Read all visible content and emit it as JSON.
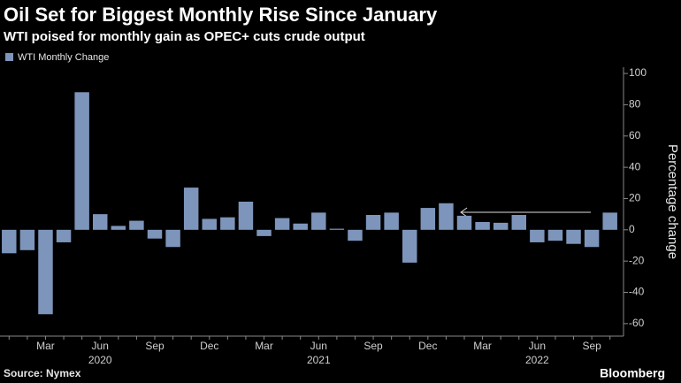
{
  "chart_data": {
    "type": "bar",
    "title": "Oil Set for Biggest Monthly Rise Since January",
    "subtitle": "WTI poised for monthly gain as OPEC+ cuts crude output",
    "y_axis_label": "Percentage change",
    "source": "Source: Nymex",
    "brand": "Bloomberg",
    "categories": [
      null,
      null,
      "Mar",
      null,
      null,
      "Jun",
      null,
      null,
      "Sep",
      null,
      null,
      "Dec",
      null,
      null,
      "Mar",
      null,
      null,
      "Jun",
      null,
      null,
      "Sep",
      null,
      null,
      "Dec",
      null,
      null,
      "Mar",
      null,
      null,
      "Jun",
      null,
      null,
      "Sep",
      null
    ],
    "x_year_labels": [
      null,
      null,
      null,
      null,
      null,
      "2020",
      null,
      null,
      null,
      null,
      null,
      null,
      null,
      null,
      null,
      null,
      null,
      "2021",
      null,
      null,
      null,
      null,
      null,
      null,
      null,
      null,
      null,
      null,
      null,
      "2022",
      null,
      null,
      null,
      null
    ],
    "series": [
      {
        "name": "WTI Monthly Change",
        "color": "#7d95bb",
        "values": [
          -15,
          -13,
          -54,
          -8,
          88,
          10,
          2.5,
          5.8,
          -5.6,
          -11,
          27,
          7,
          8,
          18,
          -4,
          7.5,
          4,
          11,
          0.7,
          -7,
          9.5,
          11,
          -21,
          14,
          17,
          9,
          5,
          4.5,
          9.5,
          -8,
          -7,
          -9,
          -11,
          11
        ]
      }
    ],
    "ylim": [
      -68,
      104
    ],
    "yticks": [
      -60,
      -40,
      -20,
      0,
      20,
      40,
      60,
      80,
      100
    ],
    "grid": false,
    "legend": "top-left"
  }
}
